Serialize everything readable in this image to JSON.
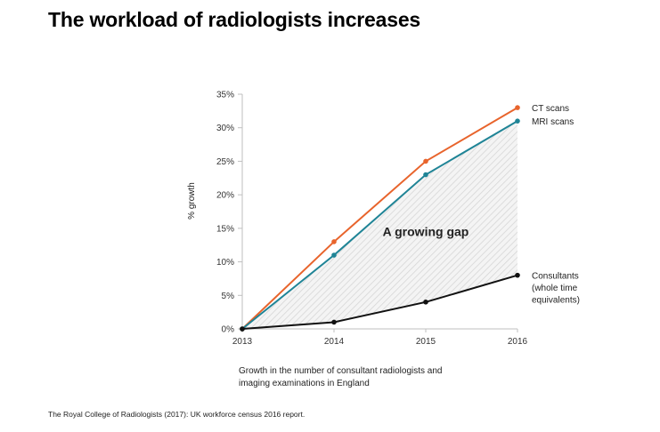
{
  "page": {
    "title": "The workload of radiologists increases",
    "source": "The Royal College of Radiologists (2017): UK workforce census 2016 report.",
    "caption_lines": [
      "Growth in the number of consultant radiologists and",
      "imaging examinations in England"
    ]
  },
  "chart_data": {
    "type": "line",
    "title": "",
    "xlabel": "",
    "ylabel": "% growth",
    "x": [
      "2013",
      "2014",
      "2015",
      "2016"
    ],
    "ylim": [
      0,
      35
    ],
    "yticks": [
      0,
      5,
      10,
      15,
      20,
      25,
      30,
      35
    ],
    "ytick_labels": [
      "0%",
      "5%",
      "10%",
      "15%",
      "20%",
      "25%",
      "30%",
      "35%"
    ],
    "grid": false,
    "series": [
      {
        "name": "CT scans",
        "label_lines": [
          "CT scans"
        ],
        "color": "#e8642c",
        "values": [
          0,
          13,
          25,
          33
        ]
      },
      {
        "name": "MRI scans",
        "label_lines": [
          "MRI scans"
        ],
        "color": "#1f8496",
        "values": [
          0,
          11,
          23,
          31
        ]
      },
      {
        "name": "Consultants (whole time equivalents)",
        "label_lines": [
          "Consultants",
          "(whole time",
          "equivalents)"
        ],
        "color": "#111111",
        "values": [
          0,
          1,
          4,
          8
        ]
      }
    ],
    "shaded_region": {
      "between": [
        "MRI scans",
        "Consultants (whole time equivalents)"
      ],
      "style": "diagonal-hatch",
      "color": "#d9d9d9"
    },
    "annotations": [
      {
        "text": "A growing gap",
        "x": "2015",
        "y": 14.5
      }
    ]
  }
}
